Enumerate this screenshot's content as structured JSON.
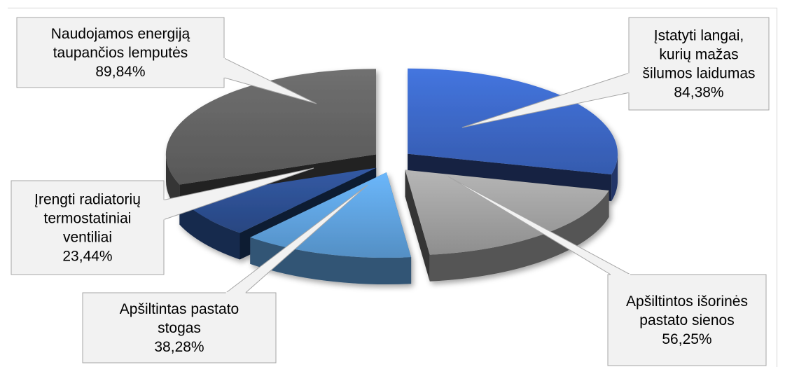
{
  "chart_data": {
    "type": "pie",
    "title": "",
    "style": "3d-exploded",
    "slices": [
      {
        "label_lines": [
          "Įstatyti langai,",
          "kurių mažas",
          "šilumos laidumas"
        ],
        "value_text": "84,38%",
        "value": 84.38,
        "color": "#3a63bd"
      },
      {
        "label_lines": [
          "Apšiltintos išorinės",
          "pastato sienos"
        ],
        "value_text": "56,25%",
        "value": 56.25,
        "color": "#9a9a9a"
      },
      {
        "label_lines": [
          "Apšiltintas pastato",
          "stogas"
        ],
        "value_text": "38,28%",
        "value": 38.28,
        "color": "#5b9bd5"
      },
      {
        "label_lines": [
          "Įrengti radiatorių",
          "termostatiniai",
          "ventiliai"
        ],
        "value_text": "23,44%",
        "value": 23.44,
        "color": "#2b4c8c"
      },
      {
        "label_lines": [
          "Naudojamos energiją",
          "taupančios lemputės"
        ],
        "value_text": "89,84%",
        "value": 89.84,
        "color": "#5f5f5f"
      }
    ]
  }
}
